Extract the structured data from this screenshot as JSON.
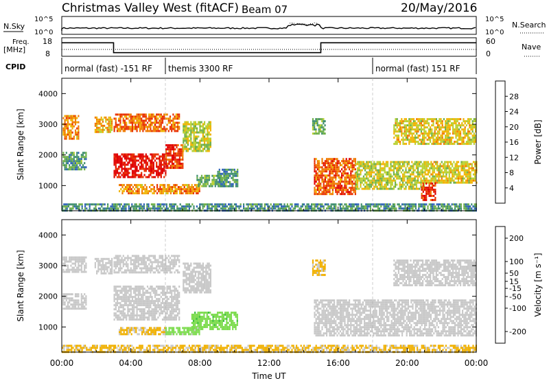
{
  "header": {
    "title": "Christmas Valley West (fitACF)",
    "beam": "Beam 07",
    "date": "20/May/2016"
  },
  "status_panel": {
    "nsky_label": "N.Sky",
    "nsky_ticks": [
      "10^5",
      "10^0"
    ],
    "nsearch_label": "N.Search",
    "nsearch_ticks": [
      "10^5",
      "10^0"
    ],
    "freq_label": [
      "Freq.",
      "[MHz]"
    ],
    "freq_ticks": [
      "18",
      "8"
    ],
    "nave_label": "Nave",
    "nave_ticks": [
      "60",
      "0"
    ],
    "cpid_label": "CPID",
    "cpid_segments": [
      {
        "label": "normal (fast) -151 RF",
        "start": 0,
        "end": 6.0
      },
      {
        "label": "themis 3300 RF",
        "start": 6.0,
        "end": 18.0
      },
      {
        "label": "normal (fast) 151 RF",
        "start": 18.0,
        "end": 24.0
      }
    ],
    "freq_mhz": [
      {
        "start": 0,
        "end": 3.0,
        "value": 16.2
      },
      {
        "start": 3.0,
        "end": 15.0,
        "value": 10.2
      },
      {
        "start": 15.0,
        "end": 24.0,
        "value": 16.2
      }
    ]
  },
  "x_axis": {
    "label": "Time UT",
    "range_hours": [
      0,
      24
    ],
    "ticks": [
      {
        "hour": 0,
        "label": "00:00"
      },
      {
        "hour": 4,
        "label": "04:00"
      },
      {
        "hour": 8,
        "label": "08:00"
      },
      {
        "hour": 12,
        "label": "12:00"
      },
      {
        "hour": 16,
        "label": "16:00"
      },
      {
        "hour": 20,
        "label": "20:00"
      },
      {
        "hour": 24,
        "label": "00:00"
      }
    ]
  },
  "chart_data": [
    {
      "type": "heatmap",
      "panel": "power",
      "xlabel": "Time UT",
      "ylabel": "Slant Range [km]",
      "xlim": [
        0,
        24
      ],
      "ylim": [
        180,
        4500
      ],
      "yticks": [
        1000,
        2000,
        3000,
        4000
      ],
      "colorbar": {
        "label": "Power [dB]",
        "ticks": [
          4,
          8,
          12,
          16,
          20,
          24,
          28
        ],
        "range": [
          0,
          32
        ],
        "colors": [
          "#1d35e0",
          "#2f63b8",
          "#3f8f6e",
          "#6fb04a",
          "#b8d030",
          "#f0b400",
          "#f07a00",
          "#e83000",
          "#e00000"
        ]
      },
      "regions": [
        {
          "t0": 0.05,
          "t1": 1.0,
          "r0": 2500,
          "r1": 3300,
          "value": 22
        },
        {
          "t0": 0.05,
          "t1": 1.4,
          "r0": 1500,
          "r1": 2100,
          "value": 10
        },
        {
          "t0": 1.9,
          "t1": 2.9,
          "r0": 2750,
          "r1": 3250,
          "value": 20
        },
        {
          "t0": 3.0,
          "t1": 6.8,
          "r0": 2800,
          "r1": 3350,
          "value": 24
        },
        {
          "t0": 3.0,
          "t1": 6.0,
          "r0": 1250,
          "r1": 2050,
          "value": 30
        },
        {
          "t0": 6.0,
          "t1": 7.0,
          "r0": 1550,
          "r1": 2350,
          "value": 27
        },
        {
          "t0": 7.0,
          "t1": 8.6,
          "r0": 2150,
          "r1": 3100,
          "value": 16
        },
        {
          "t0": 3.3,
          "t1": 8.0,
          "r0": 750,
          "r1": 1050,
          "value": 22
        },
        {
          "t0": 7.8,
          "t1": 9.5,
          "r0": 950,
          "r1": 1350,
          "value": 12
        },
        {
          "t0": 9.0,
          "t1": 10.2,
          "r0": 1000,
          "r1": 1550,
          "value": 9
        },
        {
          "t0": 14.6,
          "t1": 17.0,
          "r0": 700,
          "r1": 1900,
          "value": 25
        },
        {
          "t0": 17.0,
          "t1": 21.0,
          "r0": 900,
          "r1": 1800,
          "value": 16
        },
        {
          "t0": 21.0,
          "t1": 24.0,
          "r0": 1100,
          "r1": 1800,
          "value": 18
        },
        {
          "t0": 20.8,
          "t1": 21.6,
          "r0": 500,
          "r1": 1100,
          "value": 28
        },
        {
          "t0": 19.2,
          "t1": 24.0,
          "r0": 2350,
          "r1": 3200,
          "value": 18
        },
        {
          "t0": 14.5,
          "t1": 15.2,
          "r0": 2700,
          "r1": 3200,
          "value": 12
        },
        {
          "t0": 0.0,
          "t1": 24.0,
          "r0": 200,
          "r1": 420,
          "value": 9
        }
      ]
    },
    {
      "type": "heatmap",
      "panel": "velocity",
      "xlabel": "Time UT",
      "ylabel": "Slant Range [km]",
      "xlim": [
        0,
        24
      ],
      "ylim": [
        180,
        4500
      ],
      "yticks": [
        1000,
        2000,
        3000,
        4000
      ],
      "colorbar": {
        "label": "Velocity [m s⁻¹]",
        "ticks": [
          200,
          100,
          50,
          15,
          -15,
          -50,
          -100,
          -200
        ],
        "range": [
          -250,
          250
        ],
        "colors": [
          "#2040d0",
          "#2f8f70",
          "#3ec040",
          "#7edc50",
          "#c8c8c8",
          "#f0b000",
          "#f08000",
          "#f04000",
          "#e00000"
        ]
      },
      "regions": [
        {
          "t0": 0.05,
          "t1": 1.4,
          "r0": 2800,
          "r1": 3300,
          "value": 0
        },
        {
          "t0": 0.05,
          "t1": 1.4,
          "r0": 1600,
          "r1": 2100,
          "value": 0
        },
        {
          "t0": 1.9,
          "t1": 2.9,
          "r0": 2750,
          "r1": 3250,
          "value": 0
        },
        {
          "t0": 3.0,
          "t1": 6.8,
          "r0": 2800,
          "r1": 3350,
          "value": 0
        },
        {
          "t0": 3.0,
          "t1": 6.8,
          "r0": 1250,
          "r1": 2350,
          "value": 0
        },
        {
          "t0": 7.0,
          "t1": 8.6,
          "r0": 2150,
          "r1": 3100,
          "value": 0
        },
        {
          "t0": 7.5,
          "t1": 10.2,
          "r0": 950,
          "r1": 1500,
          "value": -70
        },
        {
          "t0": 3.3,
          "t1": 6.0,
          "r0": 750,
          "r1": 1000,
          "value": 35
        },
        {
          "t0": 6.0,
          "t1": 8.0,
          "r0": 750,
          "r1": 1000,
          "value": -40
        },
        {
          "t0": 14.6,
          "t1": 24.0,
          "r0": 700,
          "r1": 1900,
          "value": 0
        },
        {
          "t0": 19.2,
          "t1": 24.0,
          "r0": 2350,
          "r1": 3200,
          "value": 0
        },
        {
          "t0": 14.5,
          "t1": 15.2,
          "r0": 2700,
          "r1": 3200,
          "value": 35
        },
        {
          "t0": 0.0,
          "t1": 24.0,
          "r0": 200,
          "r1": 420,
          "value": 35
        }
      ]
    }
  ]
}
